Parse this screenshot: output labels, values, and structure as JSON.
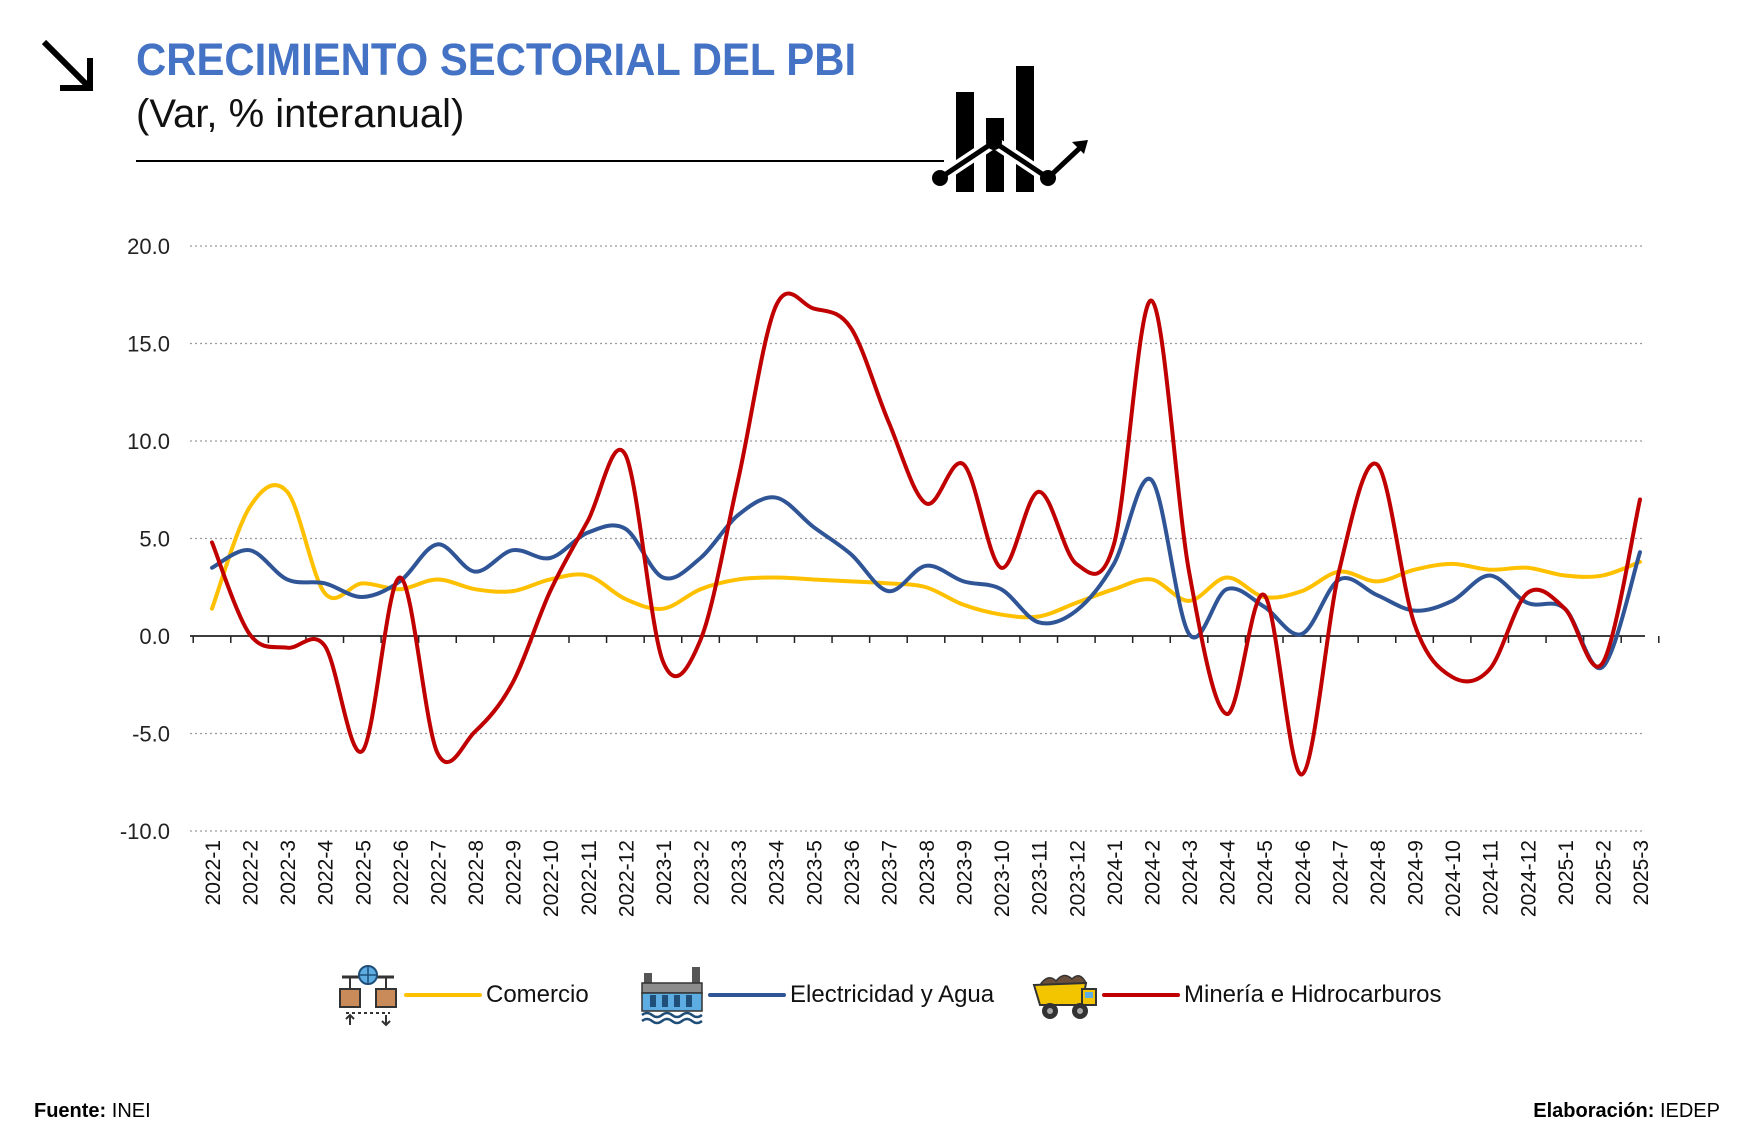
{
  "header": {
    "title": "CRECIMIENTO SECTORIAL DEL PBI",
    "subtitle": "(Var,  % interanual)",
    "arrow_icon": "arrow-down-right-icon",
    "decor_icon": "bar-chart-trend-icon"
  },
  "chart_data": {
    "type": "line",
    "title": "CRECIMIENTO SECTORIAL DEL PBI",
    "subtitle": "(Var,  % interanual)",
    "xlabel": "",
    "ylabel": "",
    "ylim": [
      -10,
      20
    ],
    "yticks": [
      "20.0",
      "15.0",
      "10.0",
      "5.0",
      "0.0",
      "-5.0",
      "-10.0"
    ],
    "grid": "horizontal dotted",
    "legend_position": "bottom",
    "categories": [
      "2022-1",
      "2022-2",
      "2022-3",
      "2022-4",
      "2022-5",
      "2022-6",
      "2022-7",
      "2022-8",
      "2022-9",
      "2022-10",
      "2022-11",
      "2022-12",
      "2023-1",
      "2023-2",
      "2023-3",
      "2023-4",
      "2023-5",
      "2023-6",
      "2023-7",
      "2023-8",
      "2023-9",
      "2023-10",
      "2023-11",
      "2023-12",
      "2024-1",
      "2024-2",
      "2024-3",
      "2024-4",
      "2024-5",
      "2024-6",
      "2024-7",
      "2024-8",
      "2024-9",
      "2024-10",
      "2024-11",
      "2024-12",
      "2025-1",
      "2025-2",
      "2025-3"
    ],
    "series": [
      {
        "name": "Comercio",
        "color": "#ffc000",
        "icon": "commerce-globe-icon",
        "values": [
          1.4,
          6.6,
          7.4,
          2.2,
          2.7,
          2.4,
          2.9,
          2.4,
          2.3,
          2.9,
          3.1,
          1.9,
          1.4,
          2.4,
          2.9,
          3.0,
          2.9,
          2.8,
          2.7,
          2.5,
          1.6,
          1.1,
          1.0,
          1.7,
          2.4,
          2.9,
          1.8,
          3.0,
          2.0,
          2.3,
          3.3,
          2.8,
          3.4,
          3.7,
          3.4,
          3.5,
          3.1,
          3.1,
          3.8
        ]
      },
      {
        "name": "Electricidad y Agua",
        "color": "#2f5597",
        "icon": "hydroelectric-dam-icon",
        "values": [
          3.5,
          4.4,
          2.9,
          2.7,
          2.0,
          2.8,
          4.7,
          3.3,
          4.4,
          4.0,
          5.3,
          5.5,
          3.0,
          4.0,
          6.2,
          7.1,
          5.6,
          4.2,
          2.3,
          3.6,
          2.8,
          2.4,
          0.7,
          1.3,
          3.7,
          8.0,
          0.1,
          2.4,
          1.5,
          0.1,
          2.9,
          2.1,
          1.3,
          1.8,
          3.1,
          1.7,
          1.4,
          -1.6,
          4.3
        ]
      },
      {
        "name": "Minería e Hidrocarburos",
        "color": "#c00000",
        "icon": "mining-truck-icon",
        "values": [
          4.8,
          0.1,
          -0.6,
          -0.5,
          -5.9,
          3.0,
          -6.0,
          -4.9,
          -2.4,
          2.3,
          5.9,
          9.3,
          -1.3,
          -0.2,
          8.0,
          16.9,
          16.8,
          15.8,
          11.0,
          6.8,
          8.8,
          3.5,
          7.4,
          3.7,
          4.7,
          17.2,
          3.3,
          -4.0,
          2.1,
          -7.1,
          3.4,
          8.8,
          0.6,
          -2.1,
          -1.7,
          2.2,
          1.4,
          -1.4,
          7.0
        ]
      }
    ]
  },
  "footer": {
    "source_label": "Fuente:",
    "source_value": "INEI",
    "credit_label": "Elaboración:",
    "credit_value": "IEDEP"
  }
}
